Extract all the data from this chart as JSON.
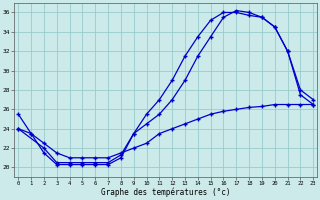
{
  "xlabel": "Graphe des températures (°c)",
  "bg_color": "#cceaea",
  "grid_color": "#99cccc",
  "line_color": "#0000cc",
  "xlim_min": -0.3,
  "xlim_max": 23.3,
  "ylim_min": 19.0,
  "ylim_max": 37.0,
  "xticks": [
    0,
    1,
    2,
    3,
    4,
    5,
    6,
    7,
    8,
    9,
    10,
    11,
    12,
    13,
    14,
    15,
    16,
    17,
    18,
    19,
    20,
    21,
    22,
    23
  ],
  "yticks": [
    20,
    22,
    24,
    26,
    28,
    30,
    32,
    34,
    36
  ],
  "curve1_x": [
    0,
    1,
    2,
    3,
    4,
    5,
    6,
    7,
    8,
    9,
    10,
    11,
    12,
    13,
    14,
    15,
    16,
    17,
    18,
    19,
    20,
    21,
    22,
    23
  ],
  "curve1_y": [
    25.5,
    23.5,
    21.5,
    20.3,
    20.3,
    20.3,
    20.3,
    20.3,
    21.0,
    23.5,
    25.5,
    27.0,
    29.0,
    31.5,
    33.5,
    35.2,
    36.0,
    36.0,
    35.7,
    35.5,
    34.5,
    32.0,
    28.0,
    27.0
  ],
  "curve2_x": [
    0,
    2,
    3,
    4,
    5,
    6,
    7,
    8,
    9,
    10,
    11,
    12,
    13,
    14,
    15,
    16,
    17,
    18,
    19,
    20,
    21,
    22,
    23
  ],
  "curve2_y": [
    24.0,
    22.0,
    20.5,
    20.5,
    20.5,
    20.5,
    20.5,
    21.3,
    23.5,
    24.5,
    25.5,
    27.0,
    29.0,
    31.5,
    33.5,
    35.5,
    36.2,
    36.0,
    35.5,
    34.5,
    32.0,
    27.5,
    26.5
  ],
  "curve3_x": [
    0,
    1,
    2,
    3,
    4,
    5,
    6,
    7,
    8,
    9,
    10,
    11,
    12,
    13,
    14,
    15,
    16,
    17,
    18,
    19,
    20,
    21,
    22,
    23
  ],
  "curve3_y": [
    24.0,
    23.5,
    22.5,
    21.5,
    21.0,
    21.0,
    21.0,
    21.0,
    21.5,
    22.0,
    22.5,
    23.5,
    24.0,
    24.5,
    25.0,
    25.5,
    25.8,
    26.0,
    26.2,
    26.3,
    26.5,
    26.5,
    26.5,
    26.5
  ]
}
